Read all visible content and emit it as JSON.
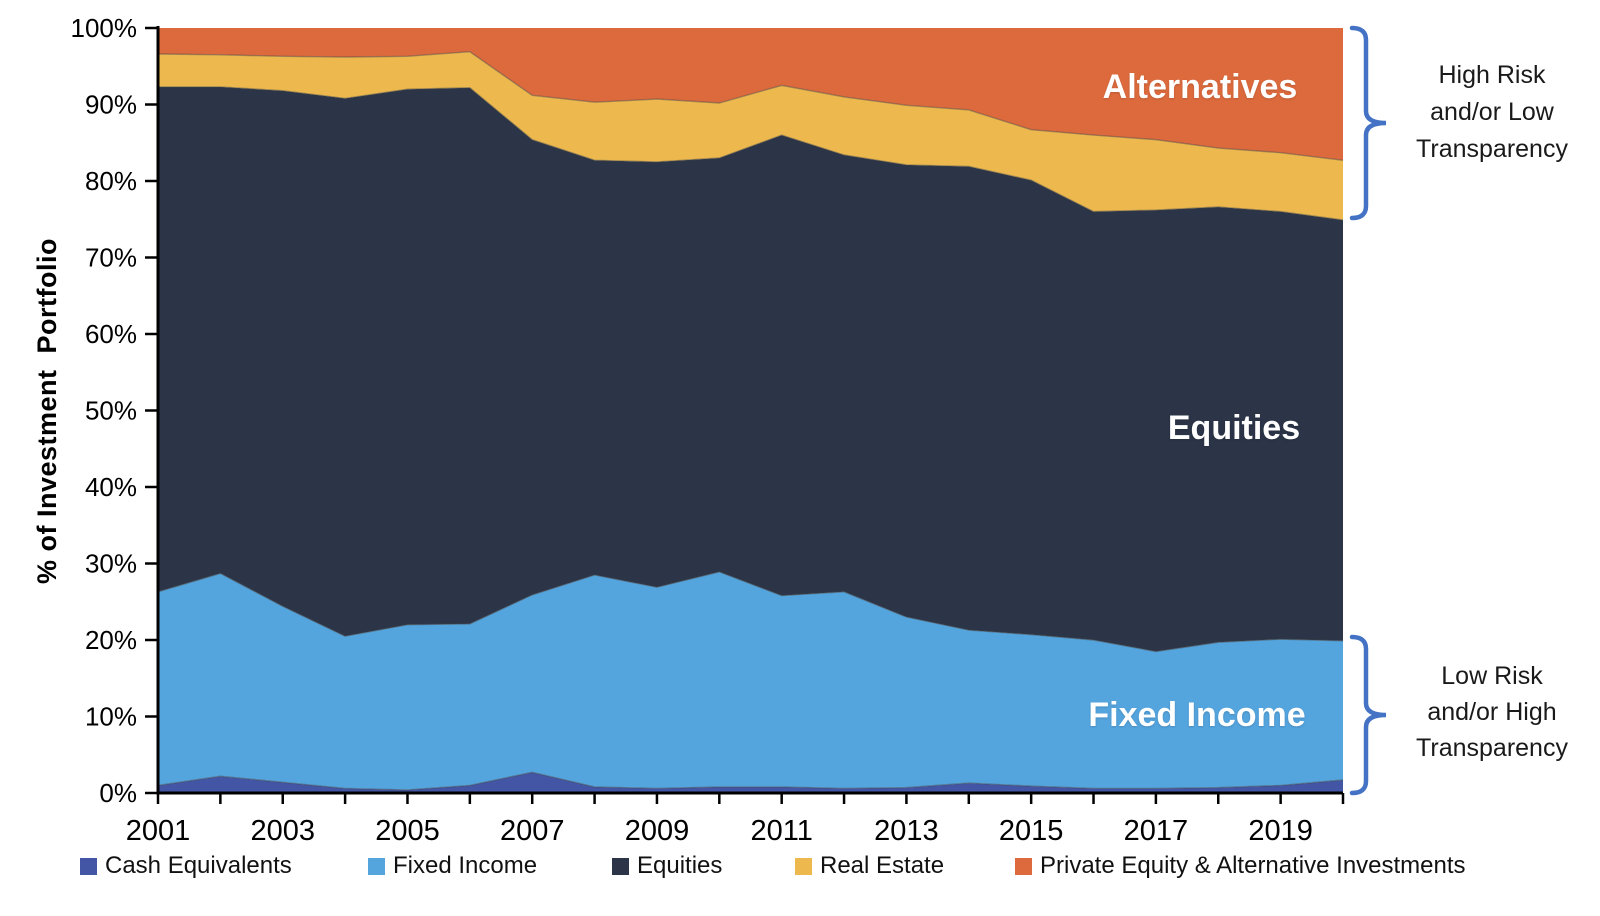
{
  "chart_data": {
    "type": "area",
    "stacked": true,
    "title": "",
    "x": [
      2001,
      2002,
      2003,
      2004,
      2005,
      2006,
      2007,
      2008,
      2009,
      2010,
      2011,
      2012,
      2013,
      2014,
      2015,
      2016,
      2017,
      2018,
      2019,
      2020
    ],
    "x_tick_labels": [
      "2001",
      "2003",
      "2005",
      "2007",
      "2009",
      "2011",
      "2013",
      "2015",
      "2017",
      "2019"
    ],
    "ylabel": "% of Investment  Portfolio",
    "ylim": [
      0,
      100
    ],
    "y_tick_step": 10,
    "y_tick_suffix": "%",
    "grid": false,
    "legend_position": "bottom",
    "series": [
      {
        "name": "Cash Equivalents",
        "color": "#4356A5",
        "values": [
          1.0,
          2.2,
          1.4,
          0.6,
          0.4,
          1.0,
          2.7,
          0.8,
          0.6,
          0.8,
          0.8,
          0.6,
          0.7,
          1.3,
          0.9,
          0.6,
          0.6,
          0.7,
          1.0,
          1.7
        ]
      },
      {
        "name": "Fixed Income",
        "color": "#54A4DE",
        "values": [
          25.3,
          26.5,
          23.0,
          19.9,
          21.6,
          21.1,
          23.2,
          27.7,
          26.3,
          28.1,
          25.0,
          25.7,
          22.3,
          20.0,
          19.8,
          19.4,
          17.9,
          19.0,
          19.1,
          18.2
        ]
      },
      {
        "name": "Equities",
        "color": "#2B3547",
        "values": [
          66.0,
          63.6,
          67.4,
          70.3,
          70.0,
          70.1,
          59.5,
          54.2,
          55.6,
          54.1,
          60.2,
          57.1,
          59.1,
          60.6,
          59.4,
          56.0,
          57.7,
          56.9,
          55.9,
          55.0
        ]
      },
      {
        "name": "Real Estate",
        "color": "#EDB94E",
        "values": [
          4.3,
          4.2,
          4.5,
          5.4,
          4.3,
          4.7,
          5.8,
          7.6,
          8.2,
          7.2,
          6.5,
          7.6,
          7.8,
          7.4,
          6.6,
          10.0,
          9.2,
          7.7,
          7.7,
          7.8
        ]
      },
      {
        "name": "Private Equity & Alternative Investments",
        "color": "#DC6A3D",
        "values": [
          3.4,
          3.5,
          3.7,
          3.8,
          3.7,
          3.1,
          8.8,
          9.7,
          9.3,
          9.8,
          7.5,
          9.0,
          10.1,
          10.7,
          13.3,
          14.0,
          14.6,
          15.7,
          16.3,
          17.3
        ]
      }
    ],
    "area_labels": [
      {
        "text": "Alternatives"
      },
      {
        "text": "Equities"
      },
      {
        "text": "Fixed Income"
      }
    ]
  },
  "annotations": {
    "bracket_color": "#4472C4",
    "high_risk": {
      "lines": [
        "High Risk",
        "and/or Low",
        "Transparency"
      ]
    },
    "low_risk": {
      "lines": [
        "Low Risk",
        "and/or High",
        "Transparency"
      ]
    }
  }
}
